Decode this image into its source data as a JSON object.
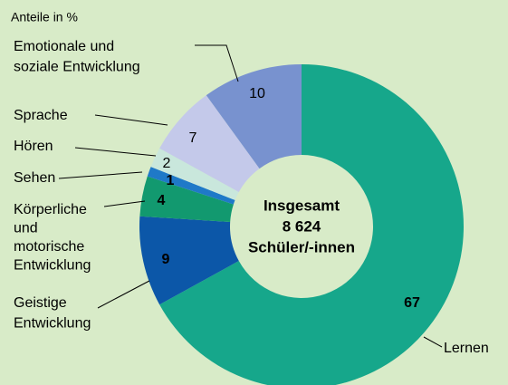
{
  "chart_data": {
    "type": "donut",
    "subtitle": "Anteile in %",
    "center_label": [
      "Insgesamt",
      "8 624",
      "Schüler/-innen"
    ],
    "categories": [
      "Lernen",
      "Geistige Entwicklung",
      "Körperliche und motorische Entwicklung",
      "Sehen",
      "Hören",
      "Sprache",
      "Emotionale und soziale Entwicklung"
    ],
    "values": [
      67,
      9,
      4,
      1,
      2,
      7,
      10
    ],
    "colors": [
      "#16a78b",
      "#0c57a8",
      "#12996f",
      "#1f79c8",
      "#c9e7dc",
      "#c4c9ea",
      "#7892cf"
    ],
    "value_text_colors": [
      "#ffffff",
      "#ffffff",
      "#ffffff",
      "#ffffff",
      "#000000",
      "#000000",
      "#000000"
    ],
    "value_text_bold": [
      true,
      true,
      true,
      true,
      false,
      false,
      false
    ]
  }
}
